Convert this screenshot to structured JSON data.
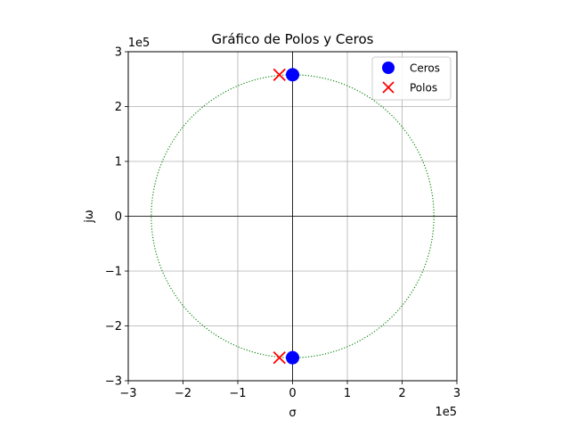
{
  "chart_data": {
    "type": "scatter",
    "title": "Gráfico de Polos y Ceros",
    "xlabel": "σ",
    "ylabel": "jω",
    "xlim": [
      -300000,
      300000
    ],
    "ylim": [
      -300000,
      300000
    ],
    "x_ticks": [
      -300000,
      -200000,
      -100000,
      0,
      100000,
      200000,
      300000
    ],
    "y_ticks": [
      -300000,
      -200000,
      -100000,
      0,
      100000,
      200000,
      300000
    ],
    "x_tick_labels": [
      "−3",
      "−2",
      "−1",
      "0",
      "1",
      "2",
      "3"
    ],
    "y_tick_labels": [
      "−3",
      "−2",
      "−1",
      "0",
      "1",
      "2",
      "3"
    ],
    "x_scale_label": "1e5",
    "y_scale_label": "1e5",
    "grid": true,
    "legend_position": "top-right",
    "series": [
      {
        "name": "Ceros",
        "marker": "circle",
        "color": "#0000ff",
        "points": [
          {
            "x": 0,
            "y": 258000
          },
          {
            "x": 0,
            "y": -258000
          }
        ]
      },
      {
        "name": "Polos",
        "marker": "x",
        "color": "#ff0000",
        "points": [
          {
            "x": -24000,
            "y": 258000
          },
          {
            "x": -24000,
            "y": -258000
          }
        ]
      }
    ],
    "reference_circle": {
      "radius": 258000,
      "color": "#008000",
      "style": "dotted"
    }
  }
}
